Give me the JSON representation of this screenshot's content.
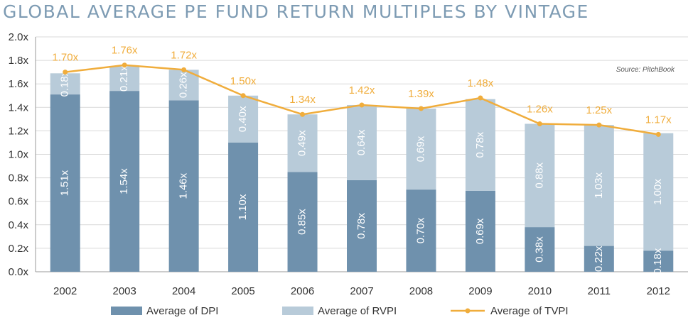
{
  "title": "GLOBAL AVERAGE PE FUND RETURN MULTIPLES BY VINTAGE",
  "source": "Source: PitchBook",
  "colors": {
    "dpi": "#6f91ad",
    "rvpi": "#b8cbd9",
    "tvpi": "#f0ad3c",
    "grid": "#d9d9d9",
    "axis": "#999999"
  },
  "chart_data": {
    "type": "bar",
    "stacked": true,
    "categories": [
      "2002",
      "2003",
      "2004",
      "2005",
      "2006",
      "2007",
      "2008",
      "2009",
      "2010",
      "2011",
      "2012"
    ],
    "series": [
      {
        "name": "Average of DPI",
        "kind": "bar",
        "values": [
          1.51,
          1.54,
          1.46,
          1.1,
          0.85,
          0.78,
          0.7,
          0.69,
          0.38,
          0.22,
          0.18
        ],
        "labels": [
          "1.51x",
          "1.54x",
          "1.46x",
          "1.10x",
          "0.85x",
          "0.78x",
          "0.70x",
          "0.69x",
          "0.38x",
          "0.22x",
          "0.18x"
        ]
      },
      {
        "name": "Average of RVPI",
        "kind": "bar",
        "values": [
          0.18,
          0.21,
          0.26,
          0.4,
          0.49,
          0.64,
          0.69,
          0.78,
          0.88,
          1.03,
          1.0
        ],
        "labels": [
          "0.18x",
          "0.21x",
          "0.26x",
          "0.40x",
          "0.49x",
          "0.64x",
          "0.69x",
          "0.78x",
          "0.88x",
          "1.03x",
          "1.00x"
        ]
      },
      {
        "name": "Average of TVPI",
        "kind": "line",
        "values": [
          1.7,
          1.76,
          1.72,
          1.5,
          1.34,
          1.42,
          1.39,
          1.48,
          1.26,
          1.25,
          1.17
        ],
        "labels": [
          "1.70x",
          "1.76x",
          "1.72x",
          "1.50x",
          "1.34x",
          "1.42x",
          "1.39x",
          "1.48x",
          "1.26x",
          "1.25x",
          "1.17x"
        ]
      }
    ],
    "yticks": [
      "0.0x",
      "0.2x",
      "0.4x",
      "0.6x",
      "0.8x",
      "1.0x",
      "1.2x",
      "1.4x",
      "1.6x",
      "1.8x",
      "2.0x"
    ],
    "ylim": [
      0,
      2.0
    ],
    "grid": true,
    "legend_position": "bottom"
  }
}
